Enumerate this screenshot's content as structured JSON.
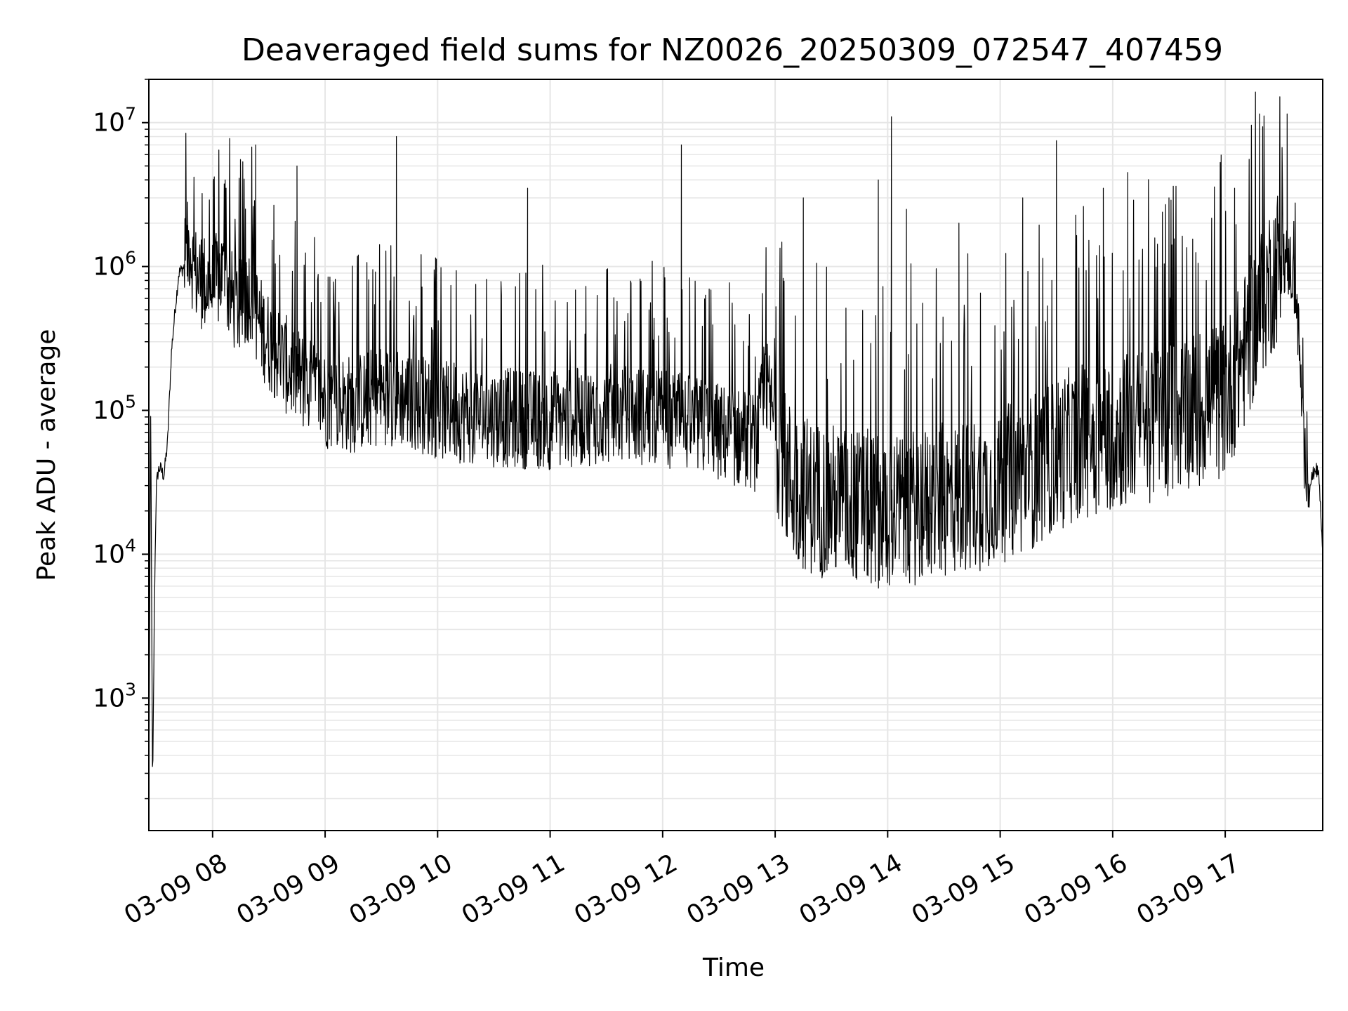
{
  "chart_data": {
    "type": "line",
    "title": "Deaveraged field sums for NZ0026_20250309_072547_407459",
    "xlabel": "Time",
    "ylabel": "Peak ADU - average",
    "yscale": "log",
    "ylim": [
      120,
      20000000
    ],
    "xlim": [
      "03-09 07:26",
      "03-09 17:52"
    ],
    "grid": "major and minor, light gray",
    "line_color": "#000000",
    "x_ticks": [
      {
        "label": "03-09 08",
        "value": "03-09 08:00"
      },
      {
        "label": "03-09 09",
        "value": "03-09 09:00"
      },
      {
        "label": "03-09 10",
        "value": "03-09 10:00"
      },
      {
        "label": "03-09 11",
        "value": "03-09 11:00"
      },
      {
        "label": "03-09 12",
        "value": "03-09 12:00"
      },
      {
        "label": "03-09 13",
        "value": "03-09 13:00"
      },
      {
        "label": "03-09 14",
        "value": "03-09 14:00"
      },
      {
        "label": "03-09 15",
        "value": "03-09 15:00"
      },
      {
        "label": "03-09 16",
        "value": "03-09 16:00"
      },
      {
        "label": "03-09 17",
        "value": "03-09 17:00"
      }
    ],
    "y_ticks": [
      {
        "base": "10",
        "exp": "3",
        "value": 1000
      },
      {
        "base": "10",
        "exp": "4",
        "value": 10000
      },
      {
        "base": "10",
        "exp": "5",
        "value": 100000
      },
      {
        "base": "10",
        "exp": "6",
        "value": 1000000
      },
      {
        "base": "10",
        "exp": "7",
        "value": 10000000
      }
    ],
    "series": [
      {
        "x": [
          "03-09 07:26",
          "03-09 07:27",
          "03-09 07:28",
          "03-09 07:29",
          "03-09 07:30",
          "03-09 07:31",
          "03-09 07:32",
          "03-09 07:34",
          "03-09 07:36",
          "03-09 07:38",
          "03-09 07:40",
          "03-09 07:42",
          "03-09 07:45",
          "03-09 07:48",
          "03-09 07:50",
          "03-09 07:55",
          "03-09 08:00",
          "03-09 08:05",
          "03-09 08:10",
          "03-09 08:15",
          "03-09 08:20",
          "03-09 08:25",
          "03-09 08:30",
          "03-09 08:40",
          "03-09 08:50",
          "03-09 09:00",
          "03-09 09:15",
          "03-09 09:30",
          "03-09 09:45",
          "03-09 10:00",
          "03-09 10:30",
          "03-09 11:00",
          "03-09 11:30",
          "03-09 12:00",
          "03-09 12:30",
          "03-09 12:50",
          "03-09 12:55",
          "03-09 13:00",
          "03-09 13:05",
          "03-09 13:10",
          "03-09 13:20",
          "03-09 13:40",
          "03-09 14:00",
          "03-09 14:20",
          "03-09 14:40",
          "03-09 15:00",
          "03-09 15:20",
          "03-09 15:40",
          "03-09 16:00",
          "03-09 16:20",
          "03-09 16:40",
          "03-09 17:00",
          "03-09 17:10",
          "03-09 17:20",
          "03-09 17:30",
          "03-09 17:35",
          "03-09 17:38",
          "03-09 17:40",
          "03-09 17:42",
          "03-09 17:45",
          "03-09 17:48",
          "03-09 17:50",
          "03-09 17:52"
        ],
        "y": [
          200,
          110000,
          200,
          5000,
          30000,
          38000,
          40000,
          35000,
          60000,
          250000,
          500000,
          900000,
          1000000,
          1500000,
          900000,
          800000,
          700000,
          900000,
          600000,
          500000,
          700000,
          400000,
          300000,
          200000,
          150000,
          120000,
          110000,
          130000,
          120000,
          100000,
          90000,
          85000,
          95000,
          90000,
          70000,
          60000,
          150000,
          80000,
          40000,
          30000,
          25000,
          22000,
          20000,
          22000,
          25000,
          30000,
          40000,
          60000,
          70000,
          80000,
          100000,
          120000,
          250000,
          600000,
          1200000,
          1000000,
          600000,
          200000,
          50000,
          30000,
          40000,
          35000,
          10000
        ]
      },
      {
        "x": [
          "03-09 08:15",
          "03-09 08:23",
          "03-09 08:45",
          "03-09 09:38",
          "03-09 10:48",
          "03-09 12:10",
          "03-09 13:15",
          "03-09 13:55",
          "03-09 14:02",
          "03-09 14:10",
          "03-09 14:38",
          "03-09 15:12",
          "03-09 15:30",
          "03-09 15:55",
          "03-09 16:08",
          "03-09 16:30",
          "03-09 17:05",
          "03-09 17:20",
          "03-09 17:33"
        ],
        "y": [
          3000000,
          7000000,
          5000000,
          8000000,
          3500000,
          7000000,
          3000000,
          4000000,
          11000000,
          2500000,
          2000000,
          3000000,
          7500000,
          3500000,
          4500000,
          3000000,
          3500000,
          5800000,
          11500000
        ]
      }
    ]
  }
}
